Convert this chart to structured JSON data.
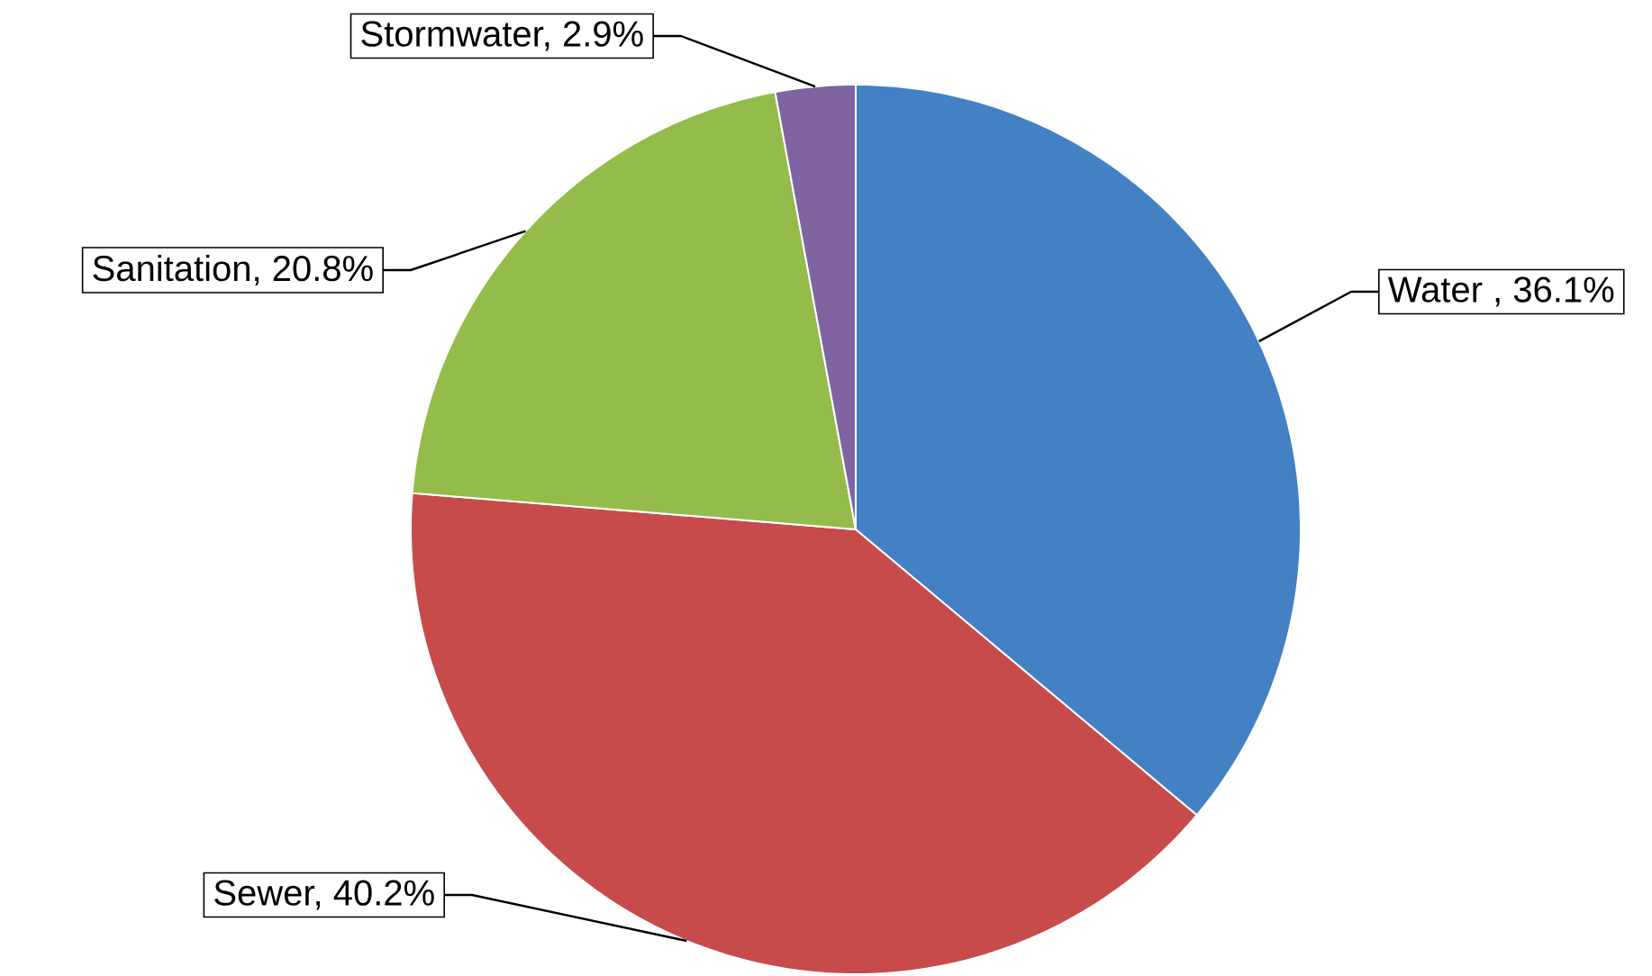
{
  "chart_data": {
    "type": "pie",
    "categories": [
      "Water , 36.1%",
      "Sewer, 40.2%",
      "Sanitation, 20.8%",
      "Stormwater, 2.9%"
    ],
    "values": [
      36.1,
      40.2,
      20.8,
      2.9
    ],
    "colors": [
      "#4380c4",
      "#c84b4b",
      "#94bc4a",
      "#8064a2"
    ]
  }
}
